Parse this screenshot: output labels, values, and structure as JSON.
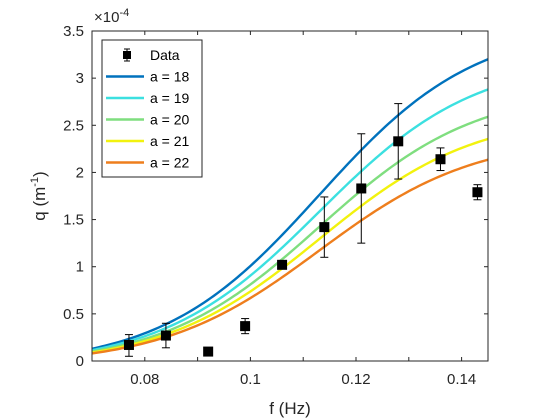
{
  "chart_data": {
    "type": "line",
    "xlabel": "f (Hz)",
    "ylabel_main": "q (m",
    "ylabel_sup": "-1",
    "ylabel_close": ")",
    "exponent_base": "×10",
    "exponent_power": "-4",
    "xlim": [
      0.07,
      0.145
    ],
    "ylim": [
      0,
      3.5
    ],
    "x_ticks": [
      0.08,
      0.09,
      0.1,
      0.11,
      0.12,
      0.13,
      0.14
    ],
    "x_tick_labels": [
      "0.08",
      "",
      "0.1",
      "",
      "0.12",
      "",
      "0.14"
    ],
    "y_ticks": [
      0,
      0.5,
      1,
      1.5,
      2,
      2.5,
      3,
      3.5
    ],
    "y_tick_labels": [
      "0",
      "0.5",
      "1",
      "1.5",
      "2",
      "2.5",
      "3",
      "3.5"
    ],
    "grid": false,
    "legend": {
      "placement": "top-left",
      "entries": [
        "Data",
        "a = 18",
        "a = 19",
        "a = 20",
        "a = 21",
        "a = 22"
      ]
    },
    "data_points": {
      "name": "Data",
      "color": "#000000",
      "x": [
        0.077,
        0.084,
        0.092,
        0.099,
        0.106,
        0.114,
        0.121,
        0.128,
        0.136,
        0.143
      ],
      "y": [
        0.17,
        0.27,
        0.1,
        0.37,
        1.02,
        1.42,
        1.83,
        2.33,
        2.14,
        1.79
      ],
      "err_low": [
        0.12,
        0.13,
        0.0,
        0.08,
        0.0,
        0.32,
        0.58,
        0.4,
        0.12,
        0.08
      ],
      "err_high": [
        0.11,
        0.13,
        0.0,
        0.08,
        0.0,
        0.32,
        0.58,
        0.4,
        0.12,
        0.08
      ]
    },
    "series": [
      {
        "name": "a = 18",
        "color": "#0072BD",
        "baseline": 0.13,
        "amplitude": 3.07
      },
      {
        "name": "a = 19",
        "color": "#3CE0E0",
        "baseline": 0.115,
        "amplitude": 2.765
      },
      {
        "name": "a = 20",
        "color": "#7FDE7F",
        "baseline": 0.1,
        "amplitude": 2.49
      },
      {
        "name": "a = 21",
        "color": "#F2F20E",
        "baseline": 0.09,
        "amplitude": 2.265
      },
      {
        "name": "a = 22",
        "color": "#EE7E1D",
        "baseline": 0.08,
        "amplitude": 2.055
      }
    ]
  }
}
